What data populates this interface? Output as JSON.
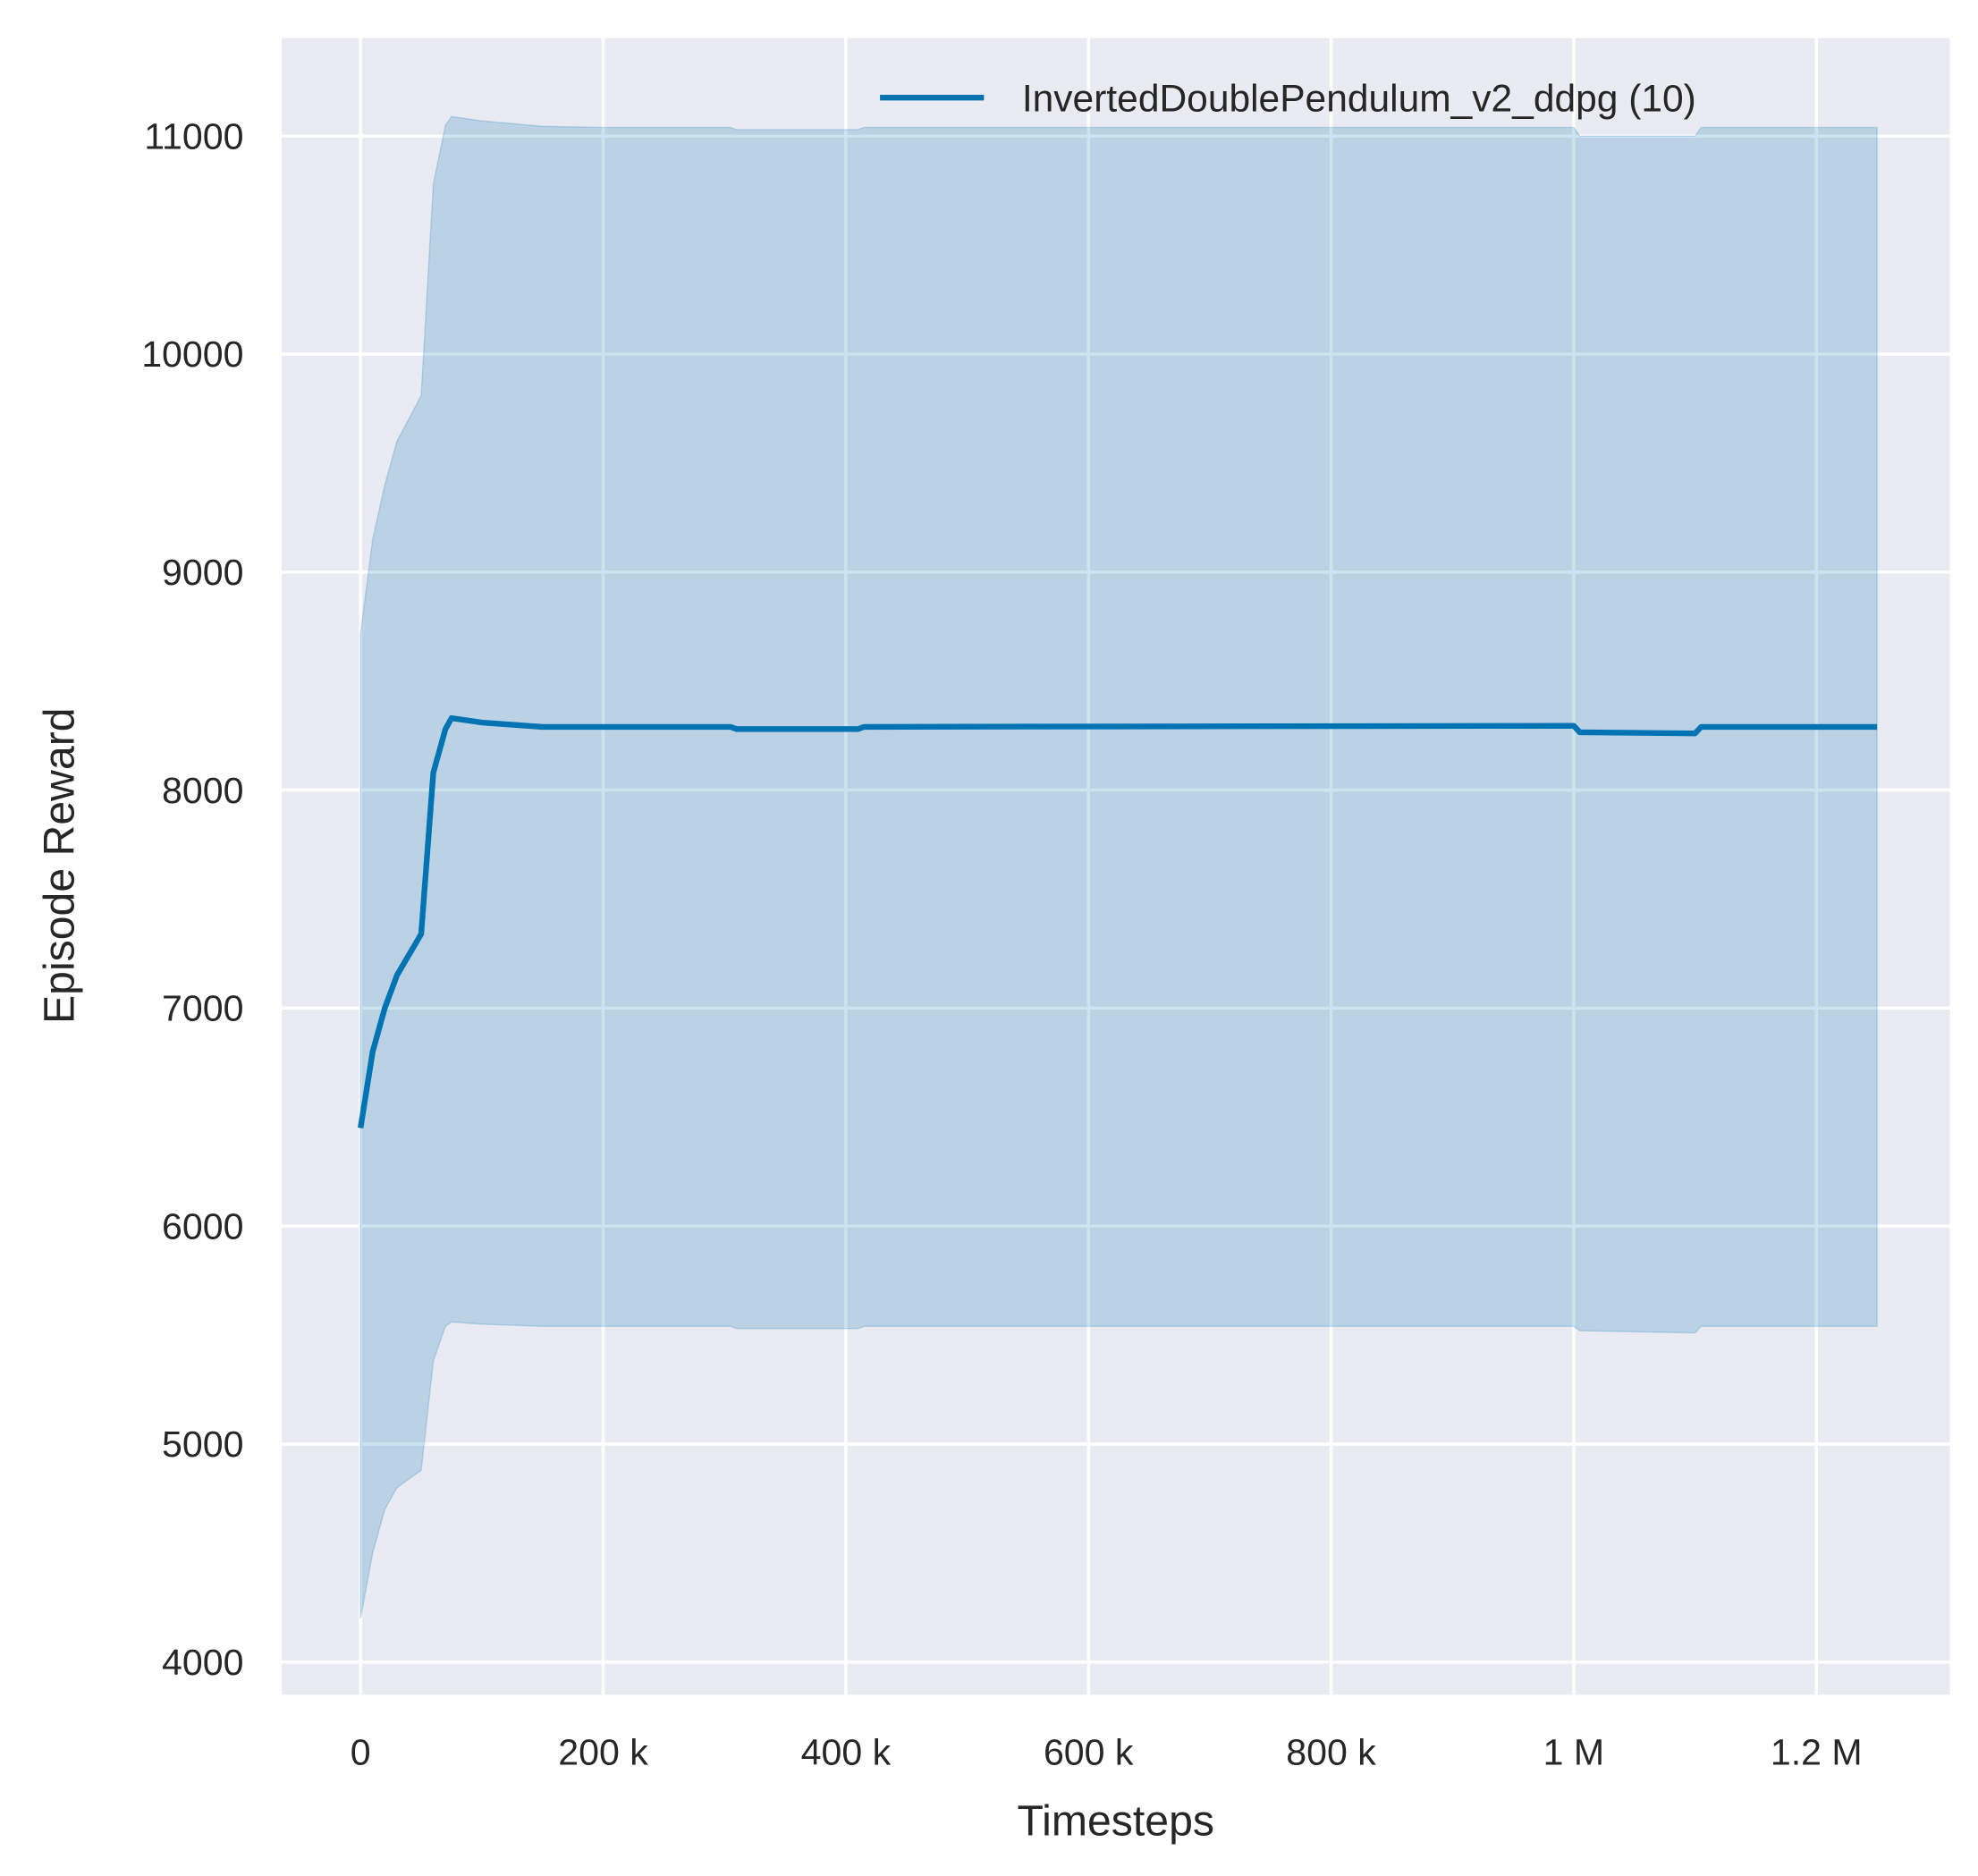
{
  "chart_data": {
    "type": "line",
    "title": "",
    "xlabel": "Timesteps",
    "ylabel": "Episode Reward",
    "xlim": [
      -65000,
      1310000
    ],
    "ylim": [
      3850,
      11450
    ],
    "grid": true,
    "legend_placement": "top-right",
    "x_ticks": [
      0,
      200000,
      400000,
      600000,
      800000,
      1000000,
      1200000
    ],
    "x_tick_labels": [
      "0",
      "200 k",
      "400 k",
      "600 k",
      "800 k",
      "1 M",
      "1.2 M"
    ],
    "y_ticks": [
      4000,
      5000,
      6000,
      7000,
      8000,
      9000,
      10000,
      11000
    ],
    "y_tick_labels": [
      "4000",
      "5000",
      "6000",
      "7000",
      "8000",
      "9000",
      "10000",
      "11000"
    ],
    "colors": {
      "line": "#0173b2",
      "band": "#0173b2",
      "background": "#eaeaf2",
      "grid": "#ffffff"
    },
    "series": [
      {
        "name": "InvertedDoublePendulum_v2_ddpg (10)",
        "x": [
          0,
          10000,
          20000,
          30000,
          50000,
          60000,
          70000,
          75000,
          100000,
          150000,
          200000,
          305000,
          310000,
          410000,
          415000,
          1000000,
          1005000,
          1100000,
          1105000,
          1250000
        ],
        "y": [
          6450,
          6800,
          7000,
          7150,
          7340,
          8080,
          8280,
          8330,
          8310,
          8290,
          8290,
          8290,
          8280,
          8280,
          8290,
          8295,
          8265,
          8260,
          8290,
          8290
        ],
        "upper": [
          8720,
          9150,
          9400,
          9600,
          9810,
          10780,
          11050,
          11090,
          11070,
          11045,
          11040,
          11040,
          11030,
          11030,
          11040,
          11040,
          11000,
          11000,
          11040,
          11040
        ],
        "lower": [
          4200,
          4500,
          4700,
          4800,
          4880,
          5380,
          5540,
          5560,
          5550,
          5540,
          5540,
          5540,
          5530,
          5530,
          5540,
          5540,
          5520,
          5510,
          5540,
          5540
        ]
      }
    ]
  }
}
